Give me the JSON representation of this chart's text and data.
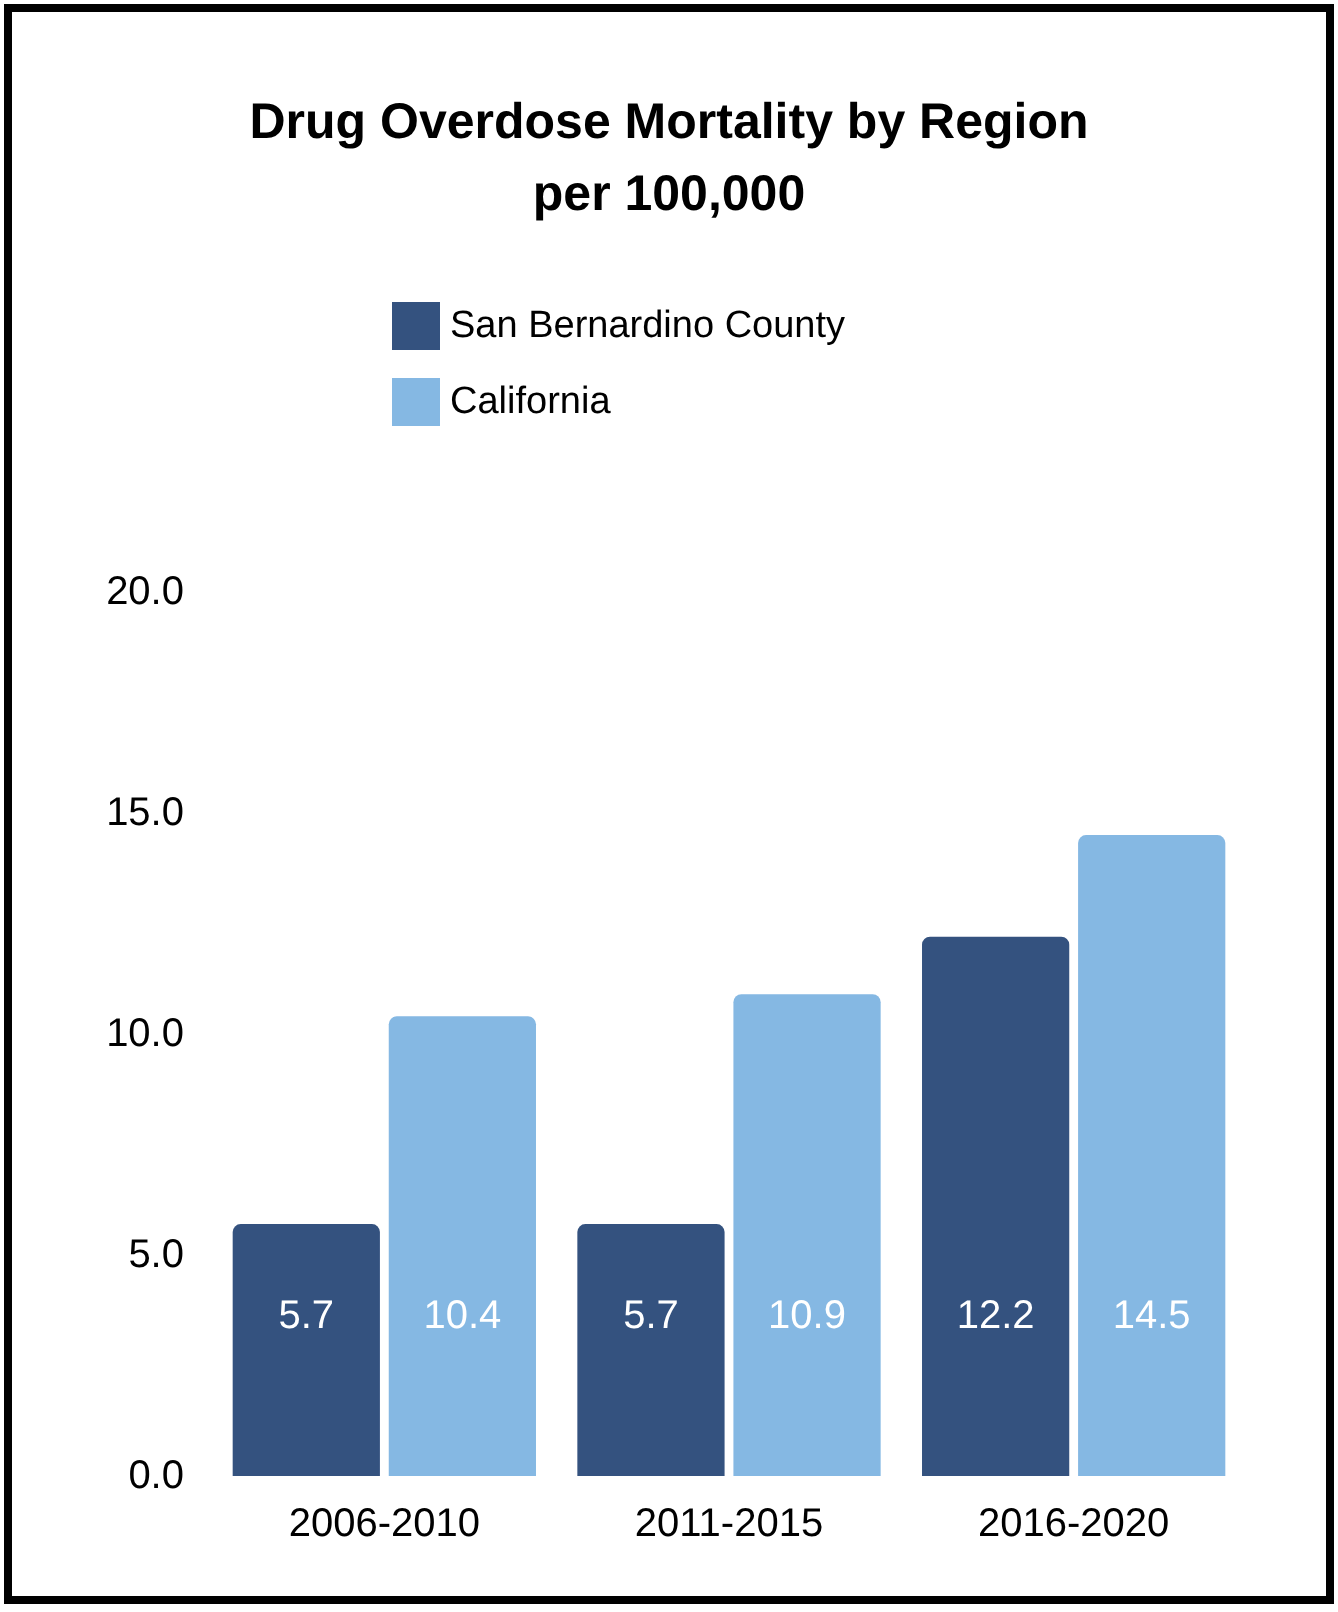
{
  "chart_data": {
    "type": "bar",
    "title": "Drug Overdose Mortality by Region\nper 100,000",
    "categories": [
      "2006-2010",
      "2011-2015",
      "2016-2020"
    ],
    "series": [
      {
        "name": "San Bernardino County",
        "color": "#34527f",
        "values": [
          5.7,
          5.7,
          12.2
        ]
      },
      {
        "name": "California",
        "color": "#85b8e3",
        "values": [
          10.4,
          10.9,
          14.5
        ]
      }
    ],
    "ylim": [
      0,
      20
    ],
    "yticks": [
      {
        "value": 0,
        "label": "0.0"
      },
      {
        "value": 5,
        "label": "5.0"
      },
      {
        "value": 10,
        "label": "10.0"
      },
      {
        "value": 15,
        "label": "15.0"
      },
      {
        "value": 20,
        "label": "20.0"
      }
    ],
    "data_labels": true,
    "grid": false,
    "legend": "top left"
  }
}
